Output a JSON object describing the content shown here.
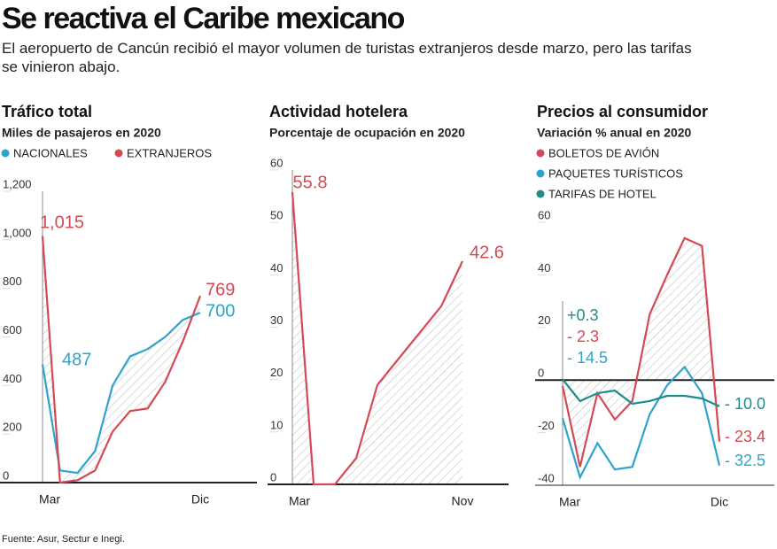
{
  "title": "Se reactiva el Caribe mexicano",
  "subtitle": "El aeropuerto de Cancún recibió el mayor volumen de turistas extranjeros desde marzo, pero las tarifas se vinieron abajo.",
  "source": "Fuente: Asur, Sectur e Inegi.",
  "chart_data": [
    {
      "type": "line",
      "title": "Tráfico total",
      "subtitle": "Miles de pasajeros en 2020",
      "categories": [
        "Mar",
        null,
        null,
        null,
        null,
        null,
        null,
        null,
        null,
        "Dic"
      ],
      "series": [
        {
          "name": "NACIONALES",
          "color": "#2ea3cc",
          "values": [
            487,
            50,
            40,
            130,
            400,
            520,
            550,
            600,
            670,
            700
          ],
          "value_labels": [
            "487",
            null,
            null,
            null,
            null,
            null,
            null,
            null,
            null,
            "700"
          ]
        },
        {
          "name": "EXTRANJEROS",
          "color": "#d34a55",
          "values": [
            1015,
            0,
            10,
            50,
            210,
            295,
            305,
            415,
            580,
            769
          ],
          "value_labels": [
            "1,015",
            null,
            null,
            null,
            null,
            null,
            null,
            null,
            null,
            "769"
          ]
        }
      ],
      "ylim": [
        0,
        1200
      ],
      "yticks": [
        0,
        200,
        400,
        600,
        800,
        {
          "value": 1000,
          "label": "1,000"
        },
        {
          "value": 1200,
          "label": "1,200"
        }
      ]
    },
    {
      "type": "line",
      "title": "Actividad hotelera",
      "subtitle": "Porcentaje de ocupación en 2020",
      "categories": [
        "Mar",
        null,
        null,
        null,
        null,
        null,
        null,
        null,
        "Nov"
      ],
      "series": [
        {
          "name": null,
          "color": "#d34a55",
          "values": [
            55.8,
            0,
            0,
            5,
            19,
            24,
            29,
            34,
            42.6
          ],
          "value_labels": [
            "55.8",
            null,
            null,
            null,
            null,
            null,
            null,
            null,
            "42.6"
          ]
        }
      ],
      "ylim": [
        0,
        60
      ],
      "yticks": [
        0,
        10,
        20,
        30,
        40,
        50,
        60
      ]
    },
    {
      "type": "line",
      "title": "Precios al consumidor",
      "subtitle": "Variación % anual en 2020",
      "categories": [
        "Mar",
        null,
        null,
        null,
        null,
        null,
        null,
        null,
        null,
        "Dic"
      ],
      "series": [
        {
          "name": "BOLETOS DE AVIÓN",
          "color": "#d34a55",
          "values": [
            -2.3,
            -33,
            -5,
            -15,
            -8,
            25,
            40,
            54,
            51,
            -23.4
          ],
          "value_labels": [
            "- 2.3",
            null,
            null,
            null,
            null,
            null,
            null,
            null,
            null,
            "- 23.4"
          ]
        },
        {
          "name": "PAQUETES TURÍSTICOS",
          "color": "#2ea3cc",
          "values": [
            -14.5,
            -37,
            -24,
            -34,
            -33,
            -13,
            -2,
            5,
            -5,
            -32.5
          ],
          "value_labels": [
            "- 14.5",
            null,
            null,
            null,
            null,
            null,
            null,
            null,
            null,
            "- 32.5"
          ]
        },
        {
          "name": "TARIFAS DE HOTEL",
          "color": "#1f8c8c",
          "values": [
            0.3,
            -8,
            -5,
            -4,
            -9,
            -8,
            -6,
            -6,
            -7,
            -10.0
          ],
          "value_labels": [
            "+0.3",
            null,
            null,
            null,
            null,
            null,
            null,
            null,
            null,
            "- 10.0"
          ]
        }
      ],
      "ylim": [
        -40,
        60
      ],
      "yticks": [
        -40,
        -20,
        0,
        20,
        40,
        60
      ]
    }
  ]
}
